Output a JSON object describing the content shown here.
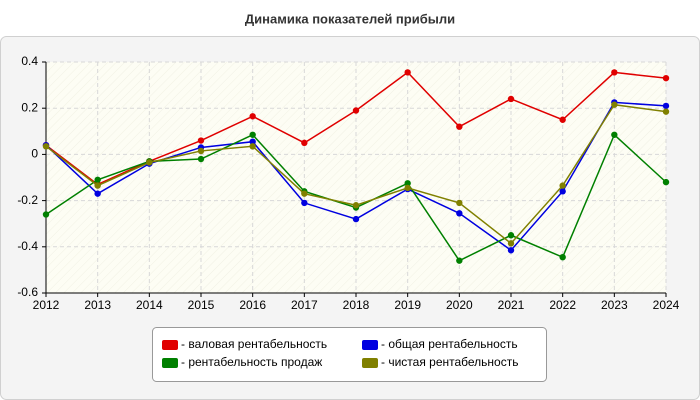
{
  "chart_data": {
    "type": "line",
    "title": "Динамика показателей прибыли",
    "x": [
      2012,
      2013,
      2014,
      2015,
      2016,
      2017,
      2018,
      2019,
      2020,
      2021,
      2022,
      2023,
      2024
    ],
    "xlim": [
      2012,
      2024
    ],
    "xticks": [
      2012,
      2013,
      2014,
      2015,
      2016,
      2017,
      2018,
      2019,
      2020,
      2021,
      2022,
      2023,
      2024
    ],
    "ylim": [
      -0.6,
      0.4
    ],
    "yticks": [
      -0.6,
      -0.4,
      -0.2,
      0,
      0.2,
      0.4
    ],
    "grid": true,
    "legend": "bottom",
    "series": [
      {
        "name": "- валовая рентабельность",
        "color": "#e00000",
        "values": [
          0.04,
          -0.13,
          -0.03,
          0.06,
          0.165,
          0.05,
          0.19,
          0.355,
          0.12,
          0.24,
          0.15,
          0.355,
          0.33
        ]
      },
      {
        "name": "- общая рентабельность",
        "color": "#0000e0",
        "values": [
          0.04,
          -0.17,
          -0.04,
          0.03,
          0.055,
          -0.21,
          -0.28,
          -0.15,
          -0.255,
          -0.415,
          -0.16,
          0.225,
          0.21
        ]
      },
      {
        "name": "- рентабельность продаж",
        "color": "#008000",
        "values": [
          -0.26,
          -0.11,
          -0.03,
          -0.02,
          0.085,
          -0.16,
          -0.23,
          -0.125,
          -0.46,
          -0.35,
          -0.445,
          0.085,
          -0.12
        ]
      },
      {
        "name": "- чистая рентабельность",
        "color": "#808000",
        "values": [
          0.035,
          -0.135,
          -0.035,
          0.015,
          0.035,
          -0.17,
          -0.22,
          -0.145,
          -0.21,
          -0.385,
          -0.135,
          0.215,
          0.185
        ]
      }
    ]
  }
}
